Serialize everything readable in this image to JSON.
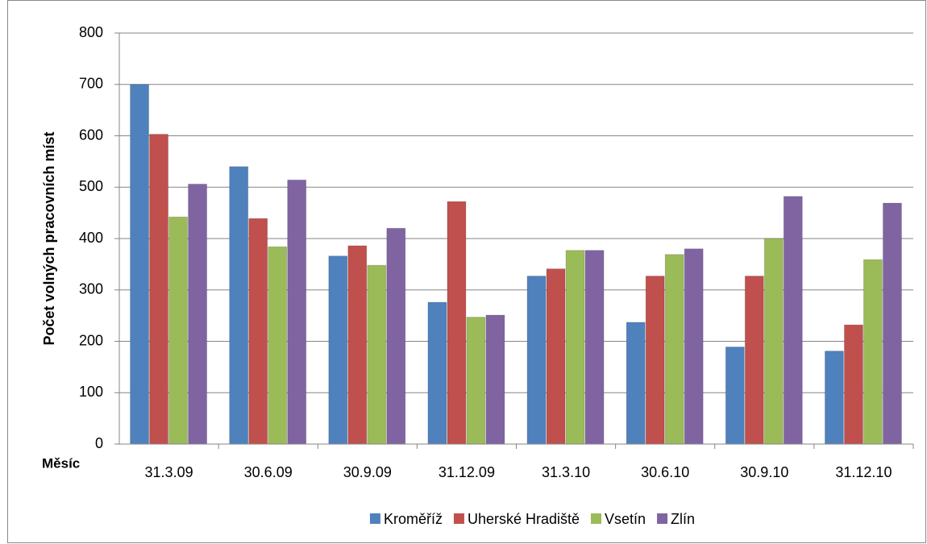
{
  "chart_data": {
    "type": "bar",
    "y_label": "Počet volných pracovních míst",
    "x_label": "Měsíc",
    "categories": [
      "31.3.09",
      "30.6.09",
      "30.9.09",
      "31.12.09",
      "31.3.10",
      "30.6.10",
      "30.9.10",
      "31.12.10"
    ],
    "series": [
      {
        "name": "Kroměříž",
        "color": "#4f81bd",
        "values": [
          700,
          540,
          366,
          276,
          327,
          237,
          189,
          181
        ]
      },
      {
        "name": "Uherské Hradiště",
        "color": "#c0504d",
        "values": [
          603,
          439,
          386,
          472,
          341,
          327,
          327,
          232
        ]
      },
      {
        "name": "Vsetín",
        "color": "#9bbb59",
        "values": [
          442,
          384,
          348,
          247,
          377,
          369,
          400,
          359
        ]
      },
      {
        "name": "Zlín",
        "color": "#8064a2",
        "values": [
          506,
          514,
          420,
          251,
          377,
          380,
          482,
          469
        ]
      }
    ],
    "ylim": [
      0,
      800
    ],
    "yticks": [
      0,
      100,
      200,
      300,
      400,
      500,
      600,
      700,
      800
    ],
    "grid": true,
    "legend": "bottom"
  }
}
